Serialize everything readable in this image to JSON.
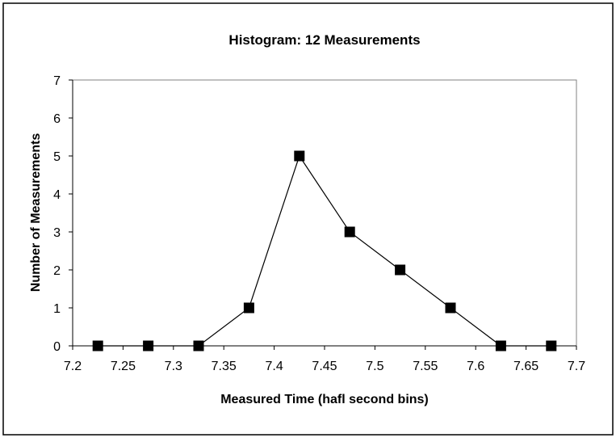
{
  "chart_data": {
    "type": "line",
    "title": "Histogram: 12 Measurements",
    "xlabel": "Measured Time (hafl second bins)",
    "ylabel": "Number of Measurements",
    "xlim": [
      7.2,
      7.7
    ],
    "ylim": [
      0,
      7
    ],
    "x_ticks": [
      "7.2",
      "7.25",
      "7.3",
      "7.35",
      "7.4",
      "7.45",
      "7.5",
      "7.55",
      "7.6",
      "7.65",
      "7.7"
    ],
    "y_ticks": [
      "0",
      "1",
      "2",
      "3",
      "4",
      "5",
      "6",
      "7"
    ],
    "grid": false,
    "legend": "none",
    "series": [
      {
        "x": [
          7.225,
          7.275,
          7.325,
          7.375,
          7.425,
          7.475,
          7.525,
          7.575,
          7.625,
          7.675
        ],
        "values": [
          0,
          0,
          0,
          1,
          5,
          3,
          2,
          1,
          0,
          0
        ],
        "color": "#000000",
        "marker": "square"
      }
    ]
  }
}
